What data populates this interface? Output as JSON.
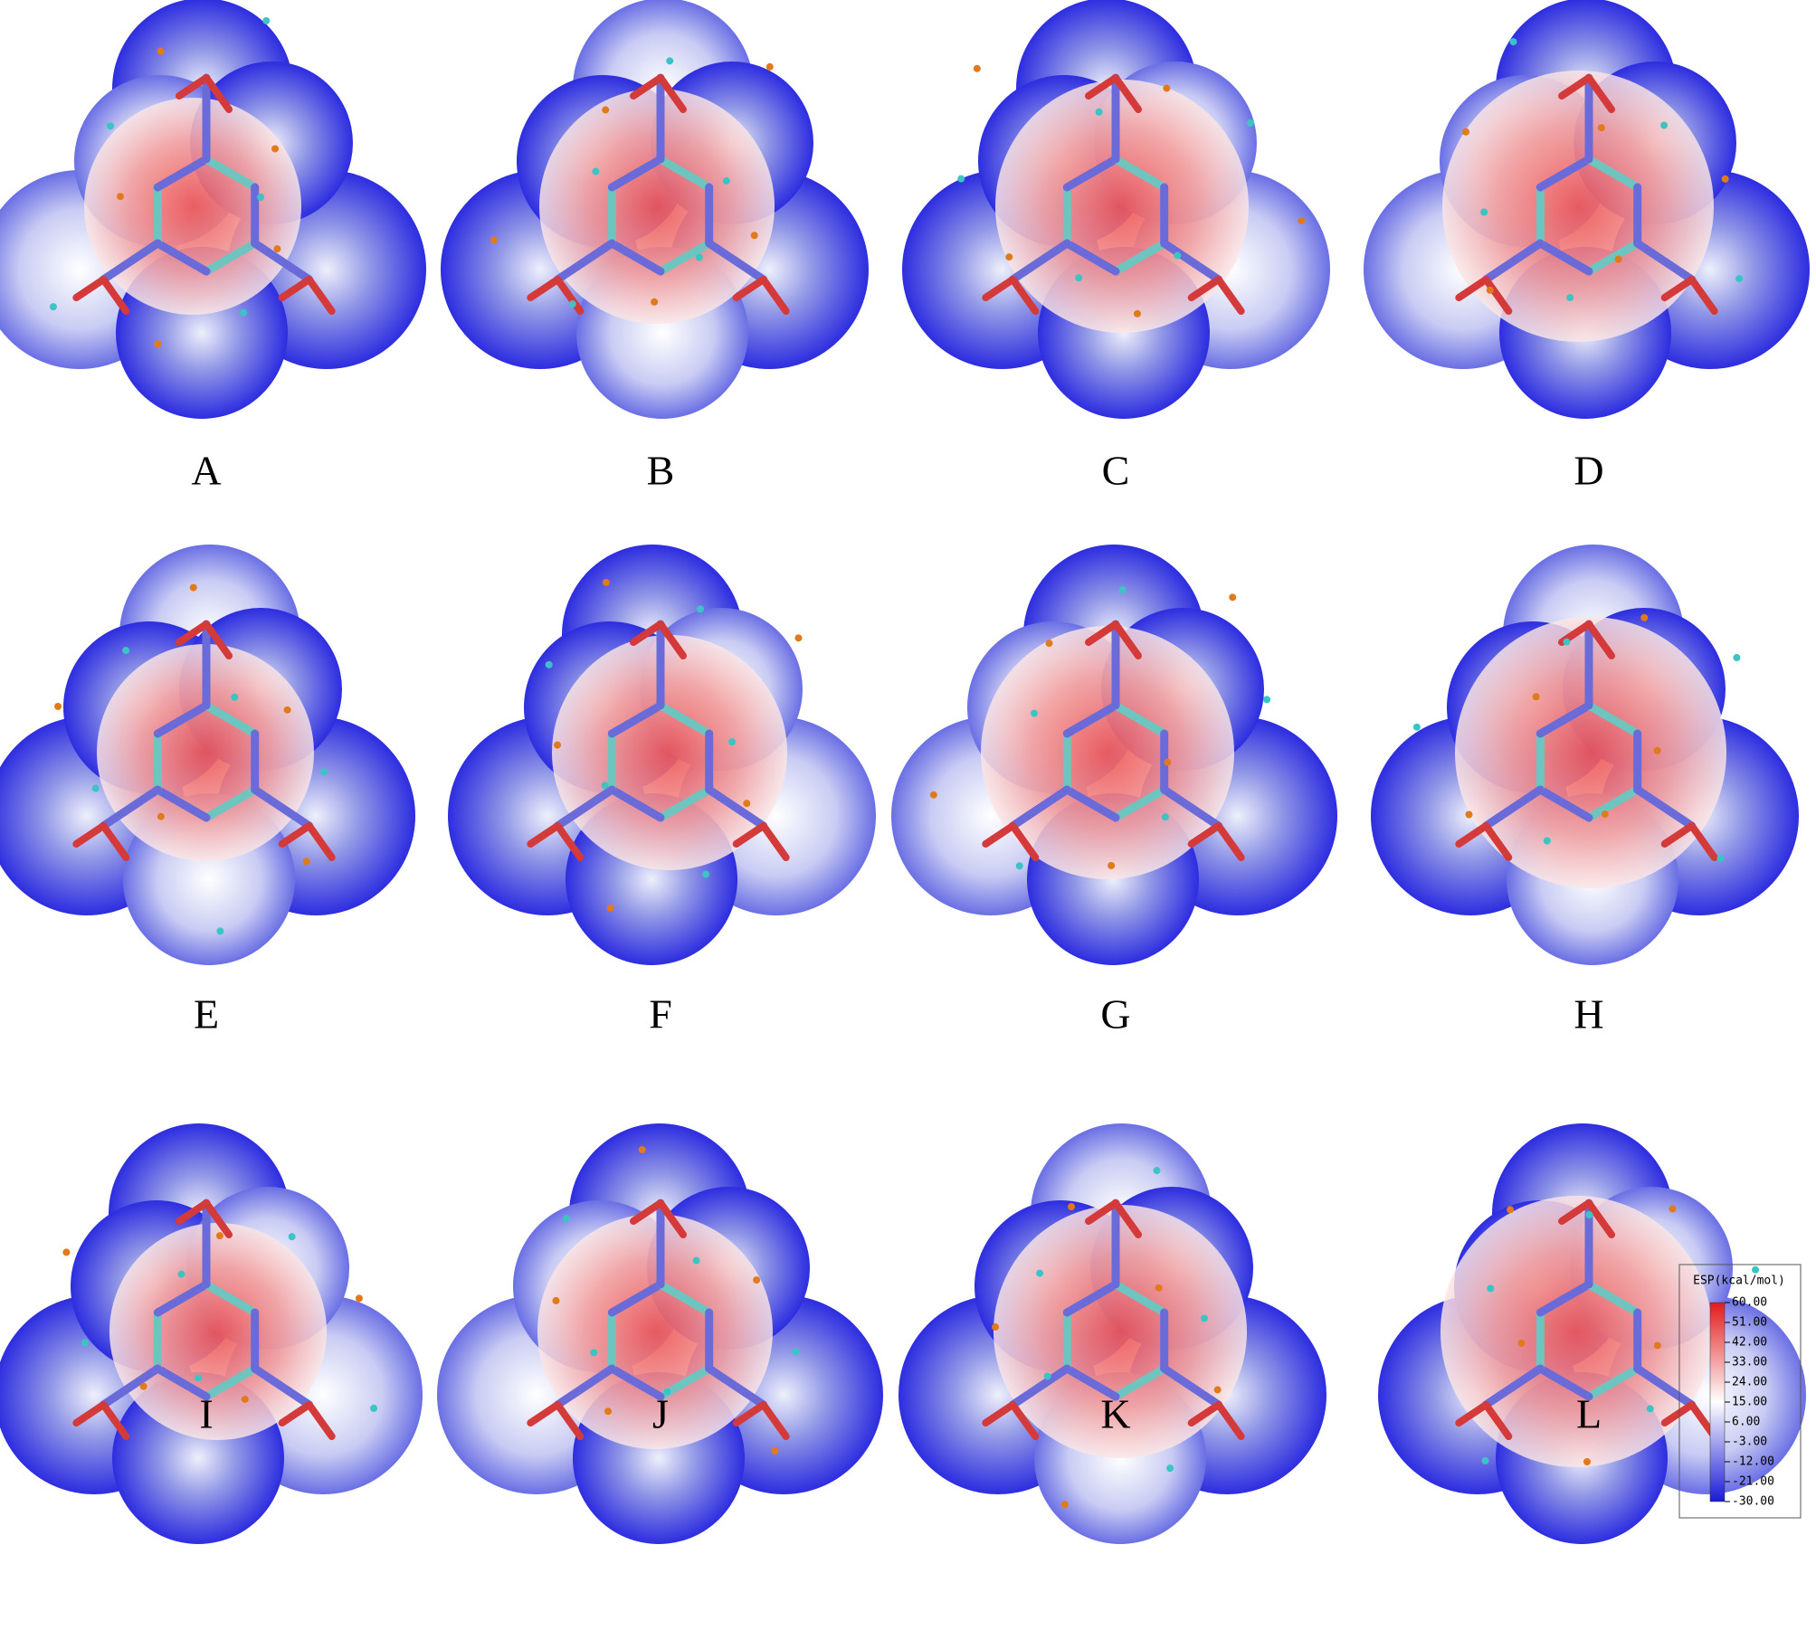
{
  "panels": [
    {
      "label": "A"
    },
    {
      "label": "B"
    },
    {
      "label": "C"
    },
    {
      "label": "D"
    },
    {
      "label": "E"
    },
    {
      "label": "F"
    },
    {
      "label": "G"
    },
    {
      "label": "H"
    },
    {
      "label": "I"
    },
    {
      "label": "J"
    },
    {
      "label": "K"
    },
    {
      "label": "L"
    }
  ],
  "colorbar": {
    "title": "ESP(kcal/mol)",
    "ticks": [
      {
        "value": 60,
        "label": "60.00"
      },
      {
        "value": 51,
        "label": "51.00"
      },
      {
        "value": 42,
        "label": "42.00"
      },
      {
        "value": 33,
        "label": "33.00"
      },
      {
        "value": 24,
        "label": "24.00"
      },
      {
        "value": 15,
        "label": "15.00"
      },
      {
        "value": 6,
        "label": "6.00"
      },
      {
        "value": -3,
        "label": "-3.00"
      },
      {
        "value": -12,
        "label": "-12.00"
      },
      {
        "value": -21,
        "label": "-21.00"
      },
      {
        "value": -30,
        "label": "-30.00"
      }
    ]
  }
}
